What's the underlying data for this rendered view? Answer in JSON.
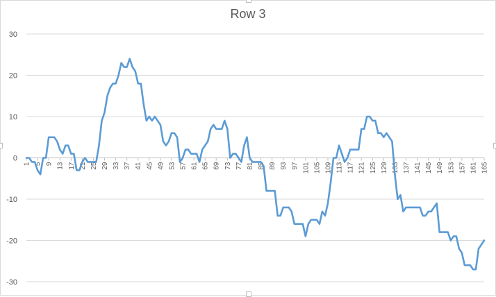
{
  "chart_data": {
    "type": "line",
    "title": "Row 3",
    "xlabel": "",
    "ylabel": "",
    "ylim": [
      -30,
      30
    ],
    "yticks": [
      -30,
      -20,
      -10,
      0,
      10,
      20,
      30
    ],
    "x_range": [
      1,
      165
    ],
    "x_tick_labels": [
      "1",
      "5",
      "9",
      "13",
      "17",
      "21",
      "25",
      "29",
      "33",
      "37",
      "41",
      "45",
      "49",
      "53",
      "57",
      "61",
      "65",
      "69",
      "73",
      "77",
      "81",
      "85",
      "89",
      "93",
      "97",
      "101",
      "105",
      "109",
      "113",
      "117",
      "121",
      "125",
      "129",
      "133",
      "137",
      "141",
      "145",
      "149",
      "153",
      "157",
      "161",
      "165"
    ],
    "grid": "horizontal",
    "legend": "none",
    "colors": {
      "line": "#5b9bd5",
      "grid": "#d9d9d9",
      "text": "#595959",
      "axis": "#bfbfbf"
    },
    "series": [
      {
        "values": [
          0,
          0,
          -1,
          -1,
          -3,
          -4,
          0,
          0,
          5,
          5,
          5,
          4,
          2,
          1,
          3,
          3,
          1,
          1,
          -3,
          -3,
          -1,
          0,
          -1,
          -1,
          -1,
          -1,
          3,
          9,
          11,
          15,
          17,
          18,
          18,
          20,
          23,
          22,
          22,
          24,
          22,
          21,
          18,
          18,
          13,
          9,
          10,
          9,
          10,
          9,
          8,
          4,
          3,
          4,
          6,
          6,
          5,
          -1,
          0,
          2,
          2,
          1,
          1,
          1,
          -1,
          2,
          3,
          4,
          7,
          8,
          7,
          7,
          7,
          9,
          7,
          0,
          1,
          1,
          0,
          -1,
          3,
          5,
          0,
          -1,
          -1,
          -1,
          -1,
          -2,
          -8,
          -8,
          -8,
          -8,
          -14,
          -14,
          -12,
          -12,
          -12,
          -13,
          -16,
          -16,
          -16,
          -16,
          -19,
          -16,
          -15,
          -15,
          -15,
          -16,
          -13,
          -14,
          -11,
          -6,
          0,
          0,
          3,
          1,
          -1,
          0,
          2,
          2,
          2,
          2,
          7,
          7,
          10,
          10,
          9,
          9,
          6,
          6,
          5,
          6,
          5,
          4,
          -4,
          -10,
          -9,
          -13,
          -12,
          -12,
          -12,
          -12,
          -12,
          -12,
          -14,
          -14,
          -13,
          -13,
          -12,
          -11,
          -18,
          -18,
          -18,
          -18,
          -20,
          -19,
          -19,
          -22,
          -23,
          -26,
          -26,
          -26,
          -27,
          -27,
          -22,
          -21,
          -20
        ]
      }
    ]
  }
}
